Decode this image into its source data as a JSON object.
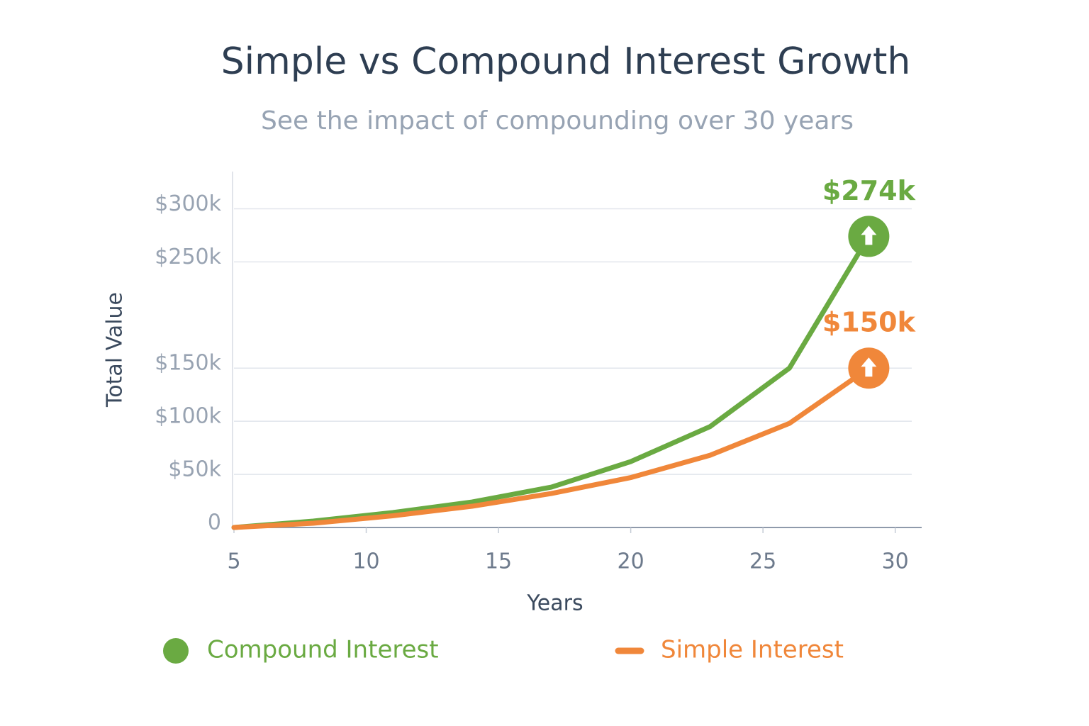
{
  "chart_data": {
    "type": "line",
    "title": "Simple vs Compound Interest Growth",
    "subtitle": "See the impact of compounding over 30 years",
    "x_label": "Years",
    "y_label": "Total Value",
    "x": [
      5,
      8,
      11,
      14,
      17,
      20,
      23,
      26,
      29
    ],
    "series": [
      {
        "name": "Compound Interest",
        "color": "#6aaa42",
        "values": [
          0,
          6000,
          14000,
          24000,
          38000,
          62000,
          95000,
          150000,
          274000
        ],
        "value_labels": [
          null,
          null,
          null,
          null,
          null,
          null,
          null,
          null,
          "$274k"
        ]
      },
      {
        "name": "Simple Interest",
        "color": "#f0873a",
        "values": [
          0,
          4000,
          11000,
          20000,
          32000,
          47000,
          68000,
          98000,
          150000
        ],
        "value_labels": [
          null,
          null,
          null,
          null,
          null,
          null,
          null,
          null,
          "$150k"
        ]
      }
    ],
    "xlim": [
      5,
      31
    ],
    "xticks": [
      5,
      10,
      15,
      20,
      25,
      30
    ],
    "ylim": [
      0,
      335000
    ],
    "yticks": [
      {
        "value": 0,
        "label": "0"
      },
      {
        "value": 50000,
        "label": "$50k"
      },
      {
        "value": 100000,
        "label": "$100k"
      },
      {
        "value": 150000,
        "label": "$150k"
      },
      {
        "value": 250000,
        "label": "$250k"
      },
      {
        "value": 300000,
        "label": "$300k"
      }
    ],
    "grid": true
  }
}
